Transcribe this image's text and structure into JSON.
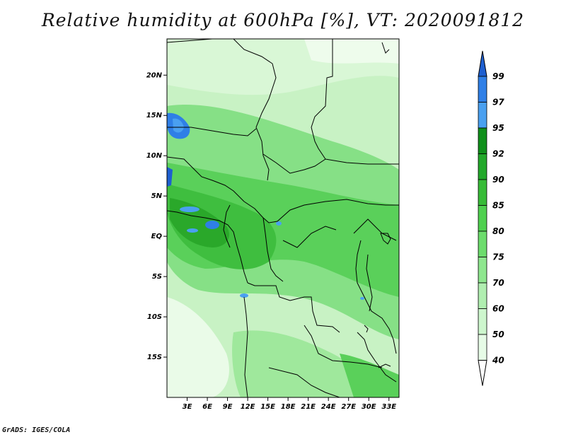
{
  "title": "Relative humidity at 600hPa [%], VT: 2020091812",
  "credit": "GrADS: IGES/COLA",
  "lat_labels": [
    "20N",
    "15N",
    "10N",
    "5N",
    "EQ",
    "5S",
    "10S",
    "15S"
  ],
  "lat_values": [
    20,
    15,
    10,
    5,
    0,
    -5,
    -10,
    -15
  ],
  "lon_labels": [
    "3E",
    "6E",
    "9E",
    "12E",
    "15E",
    "18E",
    "21E",
    "24E",
    "27E",
    "30E",
    "33E"
  ],
  "lon_values": [
    3,
    6,
    9,
    12,
    15,
    18,
    21,
    24,
    27,
    30,
    33
  ],
  "extent": {
    "lon_min": 0,
    "lon_max": 34.5,
    "lat_min": -20,
    "lat_max": 24.5
  },
  "colorbar": {
    "labels": [
      "99",
      "97",
      "95",
      "92",
      "90",
      "85",
      "80",
      "75",
      "70",
      "60",
      "50",
      "40"
    ],
    "colors": [
      "#1e5fd0",
      "#2f7fe6",
      "#4aa0f0",
      "#0f8f1a",
      "#22a82a",
      "#37bb37",
      "#4fd04f",
      "#6cdc6c",
      "#8ee68e",
      "#b0eeb0",
      "#cdf6cd",
      "#e6fbe6",
      "#ffffff"
    ]
  },
  "colors": {
    "land_base": "#9fe89c",
    "coast": "#000000"
  }
}
